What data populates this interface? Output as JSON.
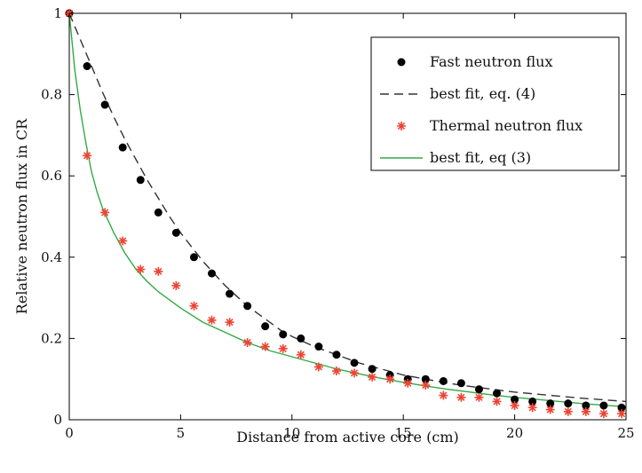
{
  "chart_data": {
    "type": "scatter",
    "xlabel": "Distance from active core (cm)",
    "ylabel": "Relative neutron flux in CR",
    "xlim": [
      0,
      25
    ],
    "ylim": [
      0,
      1
    ],
    "xticks": [
      0,
      5,
      10,
      15,
      20,
      25
    ],
    "yticks": [
      0,
      0.2,
      0.4,
      0.6,
      0.8,
      1
    ],
    "xtick_labels": [
      "0",
      "5",
      "10",
      "15",
      "20",
      "25"
    ],
    "ytick_labels": [
      "0",
      "0.2",
      "0.4",
      "0.6",
      "0.8",
      "1"
    ],
    "grid": false,
    "legend_position": "top-right",
    "series": [
      {
        "name": "Fast neutron flux",
        "kind": "markers",
        "marker": "filled-circle",
        "color": "#000000",
        "x": [
          0,
          0.8,
          1.6,
          2.4,
          3.2,
          4.0,
          4.8,
          5.6,
          6.4,
          7.2,
          8.0,
          8.8,
          9.6,
          10.4,
          11.2,
          12.0,
          12.8,
          13.6,
          14.4,
          15.2,
          16.0,
          16.8,
          17.6,
          18.4,
          19.2,
          20.0,
          20.8,
          21.6,
          22.4,
          23.2,
          24.0,
          24.8
        ],
        "y": [
          1.0,
          0.87,
          0.775,
          0.67,
          0.59,
          0.51,
          0.46,
          0.4,
          0.36,
          0.31,
          0.28,
          0.23,
          0.21,
          0.2,
          0.18,
          0.16,
          0.14,
          0.125,
          0.11,
          0.1,
          0.1,
          0.095,
          0.09,
          0.075,
          0.065,
          0.05,
          0.045,
          0.04,
          0.04,
          0.035,
          0.035,
          0.03
        ]
      },
      {
        "name": "best fit, eq. (4)",
        "kind": "dashed-line",
        "color": "#333333",
        "x": [
          0,
          0.5,
          1,
          1.5,
          2,
          2.5,
          3,
          3.5,
          4,
          4.5,
          5,
          5.5,
          6,
          6.5,
          7,
          7.5,
          8,
          8.5,
          9,
          9.5,
          10,
          11,
          12,
          13,
          14,
          15,
          16,
          17,
          18,
          19,
          20,
          21,
          22,
          23,
          24,
          25
        ],
        "y": [
          1.0,
          0.935,
          0.87,
          0.805,
          0.745,
          0.69,
          0.64,
          0.59,
          0.545,
          0.5,
          0.46,
          0.425,
          0.39,
          0.36,
          0.33,
          0.305,
          0.28,
          0.26,
          0.24,
          0.22,
          0.205,
          0.18,
          0.16,
          0.14,
          0.125,
          0.11,
          0.1,
          0.09,
          0.082,
          0.075,
          0.068,
          0.063,
          0.058,
          0.053,
          0.049,
          0.045
        ]
      },
      {
        "name": "Thermal neutron flux",
        "kind": "markers",
        "marker": "asterisk",
        "color": "#ee4433",
        "x": [
          0,
          0.8,
          1.6,
          2.4,
          3.2,
          4.0,
          4.8,
          5.6,
          6.4,
          7.2,
          8.0,
          8.8,
          9.6,
          10.4,
          11.2,
          12.0,
          12.8,
          13.6,
          14.4,
          15.2,
          16.0,
          16.8,
          17.6,
          18.4,
          19.2,
          20.0,
          20.8,
          21.6,
          22.4,
          23.2,
          24.0,
          24.8
        ],
        "y": [
          1.0,
          0.65,
          0.51,
          0.44,
          0.37,
          0.365,
          0.33,
          0.28,
          0.245,
          0.24,
          0.19,
          0.18,
          0.175,
          0.16,
          0.13,
          0.12,
          0.115,
          0.105,
          0.1,
          0.09,
          0.085,
          0.06,
          0.055,
          0.055,
          0.045,
          0.035,
          0.03,
          0.025,
          0.02,
          0.02,
          0.015,
          0.015
        ]
      },
      {
        "name": "best fit, eq (3)",
        "kind": "solid-line",
        "color": "#33aa44",
        "x": [
          0,
          0.25,
          0.5,
          0.75,
          1,
          1.25,
          1.5,
          2,
          2.5,
          3,
          3.5,
          4,
          4.5,
          5,
          6,
          7,
          8,
          9,
          10,
          11,
          12,
          13,
          14,
          15,
          16,
          17,
          18,
          19,
          20,
          21,
          22,
          23,
          24,
          25
        ],
        "y": [
          1.0,
          0.86,
          0.76,
          0.68,
          0.61,
          0.56,
          0.52,
          0.46,
          0.41,
          0.37,
          0.34,
          0.315,
          0.295,
          0.275,
          0.24,
          0.215,
          0.19,
          0.17,
          0.155,
          0.14,
          0.125,
          0.113,
          0.102,
          0.092,
          0.083,
          0.075,
          0.068,
          0.061,
          0.055,
          0.05,
          0.045,
          0.04,
          0.036,
          0.032
        ]
      }
    ]
  }
}
